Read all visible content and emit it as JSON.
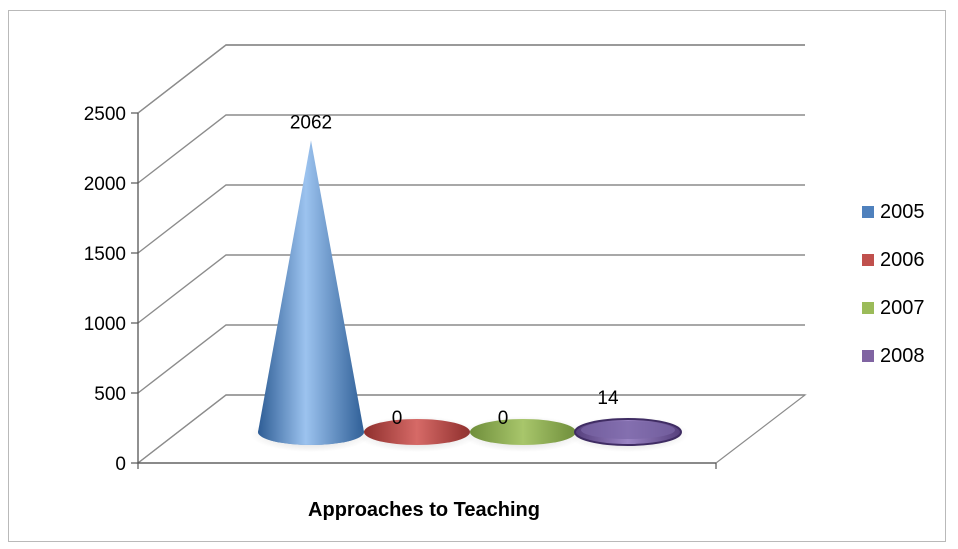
{
  "chart_data": {
    "type": "bar",
    "style": "3d-cone",
    "categories": [
      "Approaches to Teaching"
    ],
    "series": [
      {
        "name": "2005",
        "values": [
          2062
        ],
        "color": "#4f81bd"
      },
      {
        "name": "2006",
        "values": [
          0
        ],
        "color": "#c0504d"
      },
      {
        "name": "2007",
        "values": [
          0
        ],
        "color": "#9bbb59"
      },
      {
        "name": "2008",
        "values": [
          14
        ],
        "color": "#8064a2"
      }
    ],
    "data_labels": [
      "2062",
      "0",
      "0",
      "14"
    ],
    "xlabel": "Approaches to Teaching",
    "ylabel": "",
    "ylim": [
      0,
      2500
    ],
    "yticks": [
      "0",
      "500",
      "1000",
      "1500",
      "2000",
      "2500"
    ],
    "grid": true,
    "legend_position": "right"
  }
}
